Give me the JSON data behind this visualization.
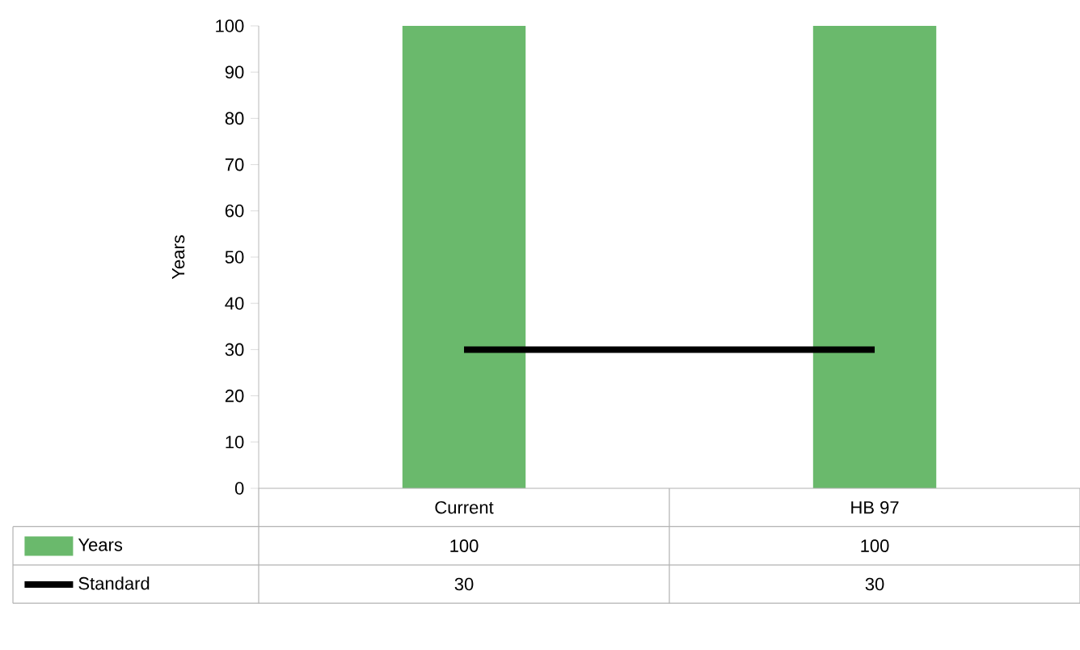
{
  "chart_data": {
    "type": "bar",
    "ylabel": "Years",
    "categories": [
      "Current",
      "HB 97"
    ],
    "series": [
      {
        "name": "Years",
        "color": "#6ab96c",
        "values": [
          100,
          100
        ]
      },
      {
        "name": "Standard",
        "type": "line",
        "color": "#000000",
        "values": [
          30,
          30
        ]
      }
    ],
    "ylim": [
      0,
      100
    ],
    "yticks": [
      0,
      10,
      20,
      30,
      40,
      50,
      60,
      70,
      80,
      90,
      100
    ],
    "data_labels": true,
    "legend": "bottom left",
    "marker": "none",
    "line_style": "solid"
  }
}
